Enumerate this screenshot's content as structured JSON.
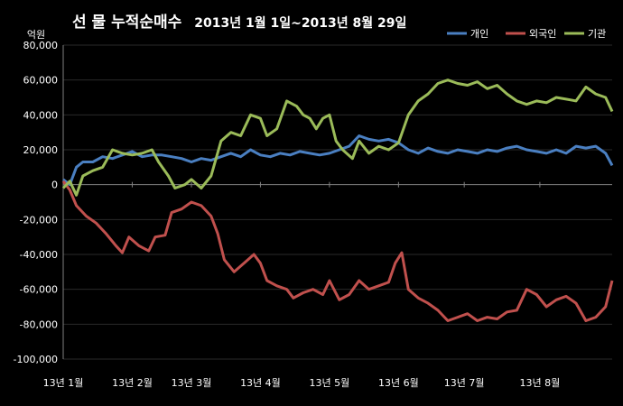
{
  "chart_data": {
    "type": "line",
    "title": "선 물 누적순매수",
    "subtitle": "2013년 1월 1일~2013년 8월 29일",
    "unit_label": "억원",
    "xlabel": "",
    "ylabel": "",
    "ylim": [
      -100000,
      80000
    ],
    "yticks": [
      80000,
      60000,
      40000,
      20000,
      0,
      -20000,
      -40000,
      -60000,
      -80000,
      -100000
    ],
    "ytick_labels": [
      "80,000",
      "60,000",
      "40,000",
      "20,000",
      "0",
      "-20,000",
      "-40,000",
      "-60,000",
      "-80,000",
      "-100,000"
    ],
    "xlim": [
      1,
      168
    ],
    "xticks": [
      {
        "x": 1,
        "label": "13년 1월"
      },
      {
        "x": 22,
        "label": "13년 2월"
      },
      {
        "x": 40,
        "label": "13년 3월"
      },
      {
        "x": 61,
        "label": "13년 4월"
      },
      {
        "x": 82,
        "label": "13년 5월"
      },
      {
        "x": 103,
        "label": "13년 6월"
      },
      {
        "x": 123,
        "label": "13년 7월"
      },
      {
        "x": 146,
        "label": "13년 8월"
      }
    ],
    "grid": true,
    "legend_position": "top-right",
    "series": [
      {
        "name": "개인",
        "color": "#4a7fc1",
        "points": [
          [
            1,
            3000
          ],
          [
            3,
            0
          ],
          [
            5,
            10000
          ],
          [
            7,
            13000
          ],
          [
            10,
            13000
          ],
          [
            13,
            16000
          ],
          [
            16,
            15000
          ],
          [
            19,
            17000
          ],
          [
            22,
            19000
          ],
          [
            25,
            16000
          ],
          [
            28,
            17000
          ],
          [
            31,
            17000
          ],
          [
            34,
            16000
          ],
          [
            37,
            15000
          ],
          [
            40,
            13000
          ],
          [
            43,
            15000
          ],
          [
            46,
            14000
          ],
          [
            49,
            16000
          ],
          [
            52,
            18000
          ],
          [
            55,
            16000
          ],
          [
            58,
            20000
          ],
          [
            61,
            17000
          ],
          [
            64,
            16000
          ],
          [
            67,
            18000
          ],
          [
            70,
            17000
          ],
          [
            73,
            19000
          ],
          [
            76,
            18000
          ],
          [
            79,
            17000
          ],
          [
            82,
            18000
          ],
          [
            85,
            20000
          ],
          [
            88,
            22000
          ],
          [
            91,
            28000
          ],
          [
            94,
            26000
          ],
          [
            97,
            25000
          ],
          [
            100,
            26000
          ],
          [
            103,
            24000
          ],
          [
            106,
            20000
          ],
          [
            109,
            18000
          ],
          [
            112,
            21000
          ],
          [
            115,
            19000
          ],
          [
            118,
            18000
          ],
          [
            121,
            20000
          ],
          [
            124,
            19000
          ],
          [
            127,
            18000
          ],
          [
            130,
            20000
          ],
          [
            133,
            19000
          ],
          [
            136,
            21000
          ],
          [
            139,
            22000
          ],
          [
            142,
            20000
          ],
          [
            145,
            19000
          ],
          [
            148,
            18000
          ],
          [
            151,
            20000
          ],
          [
            154,
            18000
          ],
          [
            157,
            22000
          ],
          [
            160,
            21000
          ],
          [
            163,
            22000
          ],
          [
            166,
            18000
          ],
          [
            168,
            11000
          ]
        ]
      },
      {
        "name": "외국인",
        "color": "#c0504d",
        "points": [
          [
            1,
            2000
          ],
          [
            3,
            -3000
          ],
          [
            5,
            -12000
          ],
          [
            8,
            -18000
          ],
          [
            11,
            -22000
          ],
          [
            14,
            -28000
          ],
          [
            17,
            -35000
          ],
          [
            19,
            -39000
          ],
          [
            21,
            -30000
          ],
          [
            24,
            -35000
          ],
          [
            27,
            -38000
          ],
          [
            29,
            -30000
          ],
          [
            32,
            -29000
          ],
          [
            34,
            -16000
          ],
          [
            37,
            -14000
          ],
          [
            40,
            -10000
          ],
          [
            43,
            -12000
          ],
          [
            46,
            -18000
          ],
          [
            48,
            -28000
          ],
          [
            50,
            -43000
          ],
          [
            53,
            -50000
          ],
          [
            56,
            -45000
          ],
          [
            59,
            -40000
          ],
          [
            61,
            -45000
          ],
          [
            63,
            -55000
          ],
          [
            66,
            -58000
          ],
          [
            69,
            -60000
          ],
          [
            71,
            -65000
          ],
          [
            74,
            -62000
          ],
          [
            77,
            -60000
          ],
          [
            80,
            -63000
          ],
          [
            82,
            -55000
          ],
          [
            85,
            -66000
          ],
          [
            88,
            -63000
          ],
          [
            91,
            -55000
          ],
          [
            94,
            -60000
          ],
          [
            97,
            -58000
          ],
          [
            100,
            -56000
          ],
          [
            102,
            -45000
          ],
          [
            104,
            -39000
          ],
          [
            106,
            -60000
          ],
          [
            109,
            -65000
          ],
          [
            112,
            -68000
          ],
          [
            115,
            -72000
          ],
          [
            118,
            -78000
          ],
          [
            121,
            -76000
          ],
          [
            124,
            -74000
          ],
          [
            127,
            -78000
          ],
          [
            130,
            -76000
          ],
          [
            133,
            -77000
          ],
          [
            136,
            -73000
          ],
          [
            139,
            -72000
          ],
          [
            142,
            -60000
          ],
          [
            145,
            -63000
          ],
          [
            148,
            -70000
          ],
          [
            151,
            -66000
          ],
          [
            154,
            -64000
          ],
          [
            157,
            -68000
          ],
          [
            160,
            -78000
          ],
          [
            163,
            -76000
          ],
          [
            166,
            -70000
          ],
          [
            168,
            -55000
          ]
        ]
      },
      {
        "name": "기관",
        "color": "#9bbb59",
        "points": [
          [
            1,
            -2000
          ],
          [
            3,
            2000
          ],
          [
            5,
            -6000
          ],
          [
            7,
            5000
          ],
          [
            10,
            8000
          ],
          [
            13,
            10000
          ],
          [
            16,
            20000
          ],
          [
            19,
            18000
          ],
          [
            22,
            17000
          ],
          [
            25,
            18000
          ],
          [
            28,
            20000
          ],
          [
            30,
            13000
          ],
          [
            33,
            5000
          ],
          [
            35,
            -2000
          ],
          [
            38,
            0
          ],
          [
            40,
            3000
          ],
          [
            43,
            -2000
          ],
          [
            46,
            5000
          ],
          [
            49,
            25000
          ],
          [
            52,
            30000
          ],
          [
            55,
            28000
          ],
          [
            58,
            40000
          ],
          [
            61,
            38000
          ],
          [
            63,
            28000
          ],
          [
            66,
            32000
          ],
          [
            69,
            48000
          ],
          [
            72,
            45000
          ],
          [
            74,
            40000
          ],
          [
            76,
            38000
          ],
          [
            78,
            32000
          ],
          [
            80,
            38000
          ],
          [
            82,
            40000
          ],
          [
            84,
            25000
          ],
          [
            86,
            20000
          ],
          [
            89,
            15000
          ],
          [
            91,
            25000
          ],
          [
            94,
            18000
          ],
          [
            97,
            22000
          ],
          [
            100,
            20000
          ],
          [
            103,
            24000
          ],
          [
            106,
            40000
          ],
          [
            109,
            48000
          ],
          [
            112,
            52000
          ],
          [
            115,
            58000
          ],
          [
            118,
            60000
          ],
          [
            121,
            58000
          ],
          [
            124,
            57000
          ],
          [
            127,
            59000
          ],
          [
            130,
            55000
          ],
          [
            133,
            57000
          ],
          [
            136,
            52000
          ],
          [
            139,
            48000
          ],
          [
            142,
            46000
          ],
          [
            145,
            48000
          ],
          [
            148,
            47000
          ],
          [
            151,
            50000
          ],
          [
            154,
            49000
          ],
          [
            157,
            48000
          ],
          [
            160,
            56000
          ],
          [
            163,
            52000
          ],
          [
            166,
            50000
          ],
          [
            168,
            42000
          ]
        ]
      }
    ]
  }
}
